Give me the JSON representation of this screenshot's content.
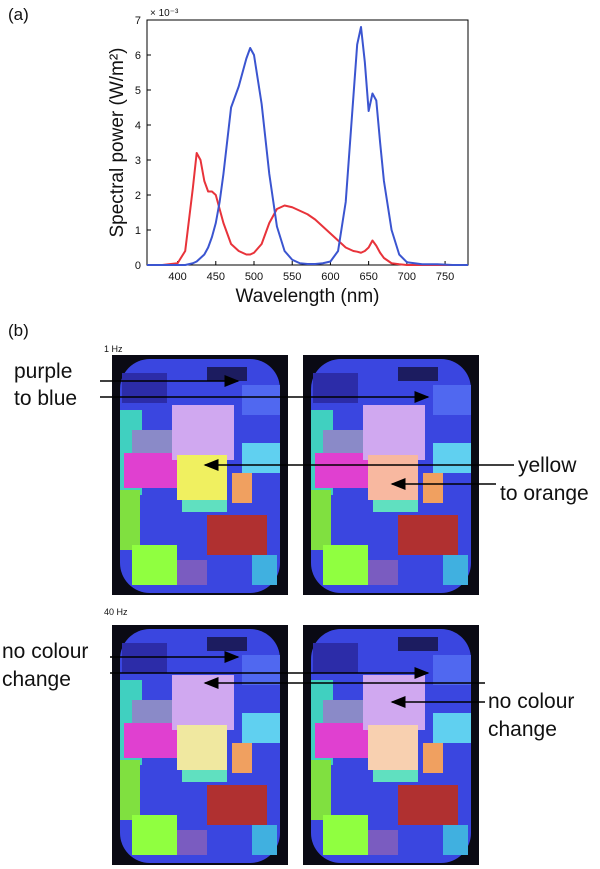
{
  "chart_data": {
    "type": "line",
    "panel_label": "(a)",
    "x_label": "Wavelength (nm)",
    "y_label": "Spectral power (W/m²)",
    "axis_multiplier": "× 10⁻³",
    "x": [
      360,
      380,
      400,
      410,
      420,
      425,
      430,
      435,
      440,
      445,
      450,
      455,
      460,
      470,
      480,
      490,
      495,
      500,
      510,
      520,
      530,
      540,
      550,
      560,
      570,
      580,
      590,
      600,
      610,
      620,
      630,
      635,
      640,
      645,
      650,
      655,
      660,
      665,
      670,
      680,
      690,
      700,
      720,
      740,
      760,
      780
    ],
    "series": [
      {
        "color": "#e8333a",
        "values": [
          0,
          0,
          0.05,
          0.4,
          2.2,
          3.2,
          3.0,
          2.4,
          2.1,
          2.1,
          2.0,
          1.6,
          1.2,
          0.6,
          0.4,
          0.3,
          0.3,
          0.35,
          0.6,
          1.2,
          1.6,
          1.7,
          1.65,
          1.55,
          1.45,
          1.3,
          1.1,
          0.9,
          0.7,
          0.5,
          0.4,
          0.38,
          0.35,
          0.4,
          0.5,
          0.7,
          0.55,
          0.35,
          0.2,
          0.05,
          0.02,
          0,
          0,
          0,
          0,
          0
        ]
      },
      {
        "color": "#3b55d0",
        "values": [
          0,
          0,
          0,
          0,
          0.05,
          0.1,
          0.2,
          0.3,
          0.5,
          0.8,
          1.2,
          1.8,
          2.6,
          4.5,
          5.1,
          5.9,
          6.2,
          6.0,
          4.6,
          2.6,
          1.1,
          0.4,
          0.15,
          0.05,
          0.03,
          0.03,
          0.05,
          0.1,
          0.4,
          1.8,
          4.8,
          6.3,
          6.8,
          5.8,
          4.4,
          4.9,
          4.7,
          3.5,
          2.4,
          1.0,
          0.3,
          0.08,
          0.02,
          0.02,
          0,
          0
        ]
      }
    ],
    "xlim": [
      360,
      780
    ],
    "xticks": [
      400,
      450,
      500,
      550,
      600,
      650,
      700,
      750
    ],
    "ylim": [
      0,
      7
    ],
    "yticks": [
      0,
      1,
      2,
      3,
      4,
      5,
      6,
      7
    ]
  },
  "panel_b": {
    "label": "(b)",
    "rows": [
      {
        "frequency": "1 Hz",
        "annotations": [
          {
            "lines": [
              "purple",
              "to blue"
            ]
          },
          {
            "lines": [
              "yellow",
              "to orange"
            ]
          }
        ]
      },
      {
        "frequency": "40 Hz",
        "annotations": [
          {
            "lines": [
              "no colour",
              "change"
            ]
          },
          {
            "lines": [
              "no colour",
              "change"
            ]
          }
        ]
      }
    ]
  }
}
